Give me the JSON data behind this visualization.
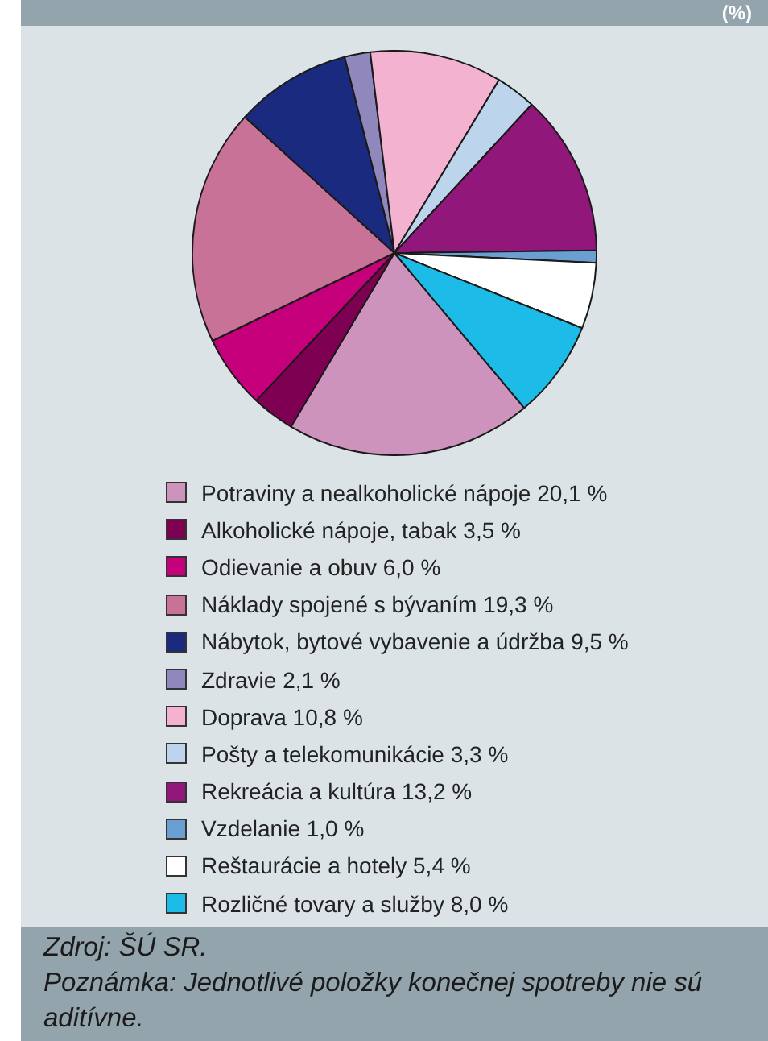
{
  "chart_data": {
    "type": "pie",
    "title": "(%)",
    "categories": [
      "Potraviny a nealkoholické nápoje",
      "Alkoholické nápoje, tabak",
      "Odievanie a obuv",
      "Náklady spojené s bývaním",
      "Nábytok, bytové vybavenie a údržba",
      "Zdravie",
      "Doprava",
      "Pošty a telekomunikácie",
      "Rekreácia a kultúra",
      "Vzdelanie",
      "Reštaurácie a hotely",
      "Rozličné tovary a služby"
    ],
    "values": [
      20.1,
      3.5,
      6.0,
      19.3,
      9.5,
      2.1,
      10.8,
      3.3,
      13.2,
      1.0,
      5.4,
      8.0
    ],
    "value_labels": [
      "20,1 %",
      "3,5 %",
      "6,0 %",
      "19,3 %",
      "9,5 %",
      "2,1 %",
      "10,8 %",
      "3,3 %",
      "13,2 %",
      "1,0 %",
      "5,4 %",
      "8,0 %"
    ],
    "colors": [
      "#cd93bc",
      "#7d0052",
      "#c5007a",
      "#c87297",
      "#1a2a7f",
      "#9088bd",
      "#f3b3d0",
      "#bcd5ec",
      "#92177a",
      "#6b9fd1",
      "#ffffff",
      "#1dbbe7"
    ],
    "legend": "bottom",
    "annotations": [
      "Zdroj: ŠÚ SR.",
      "Poznámka: Jednotlivé položky konečnej spotreby nie sú aditívne."
    ]
  }
}
